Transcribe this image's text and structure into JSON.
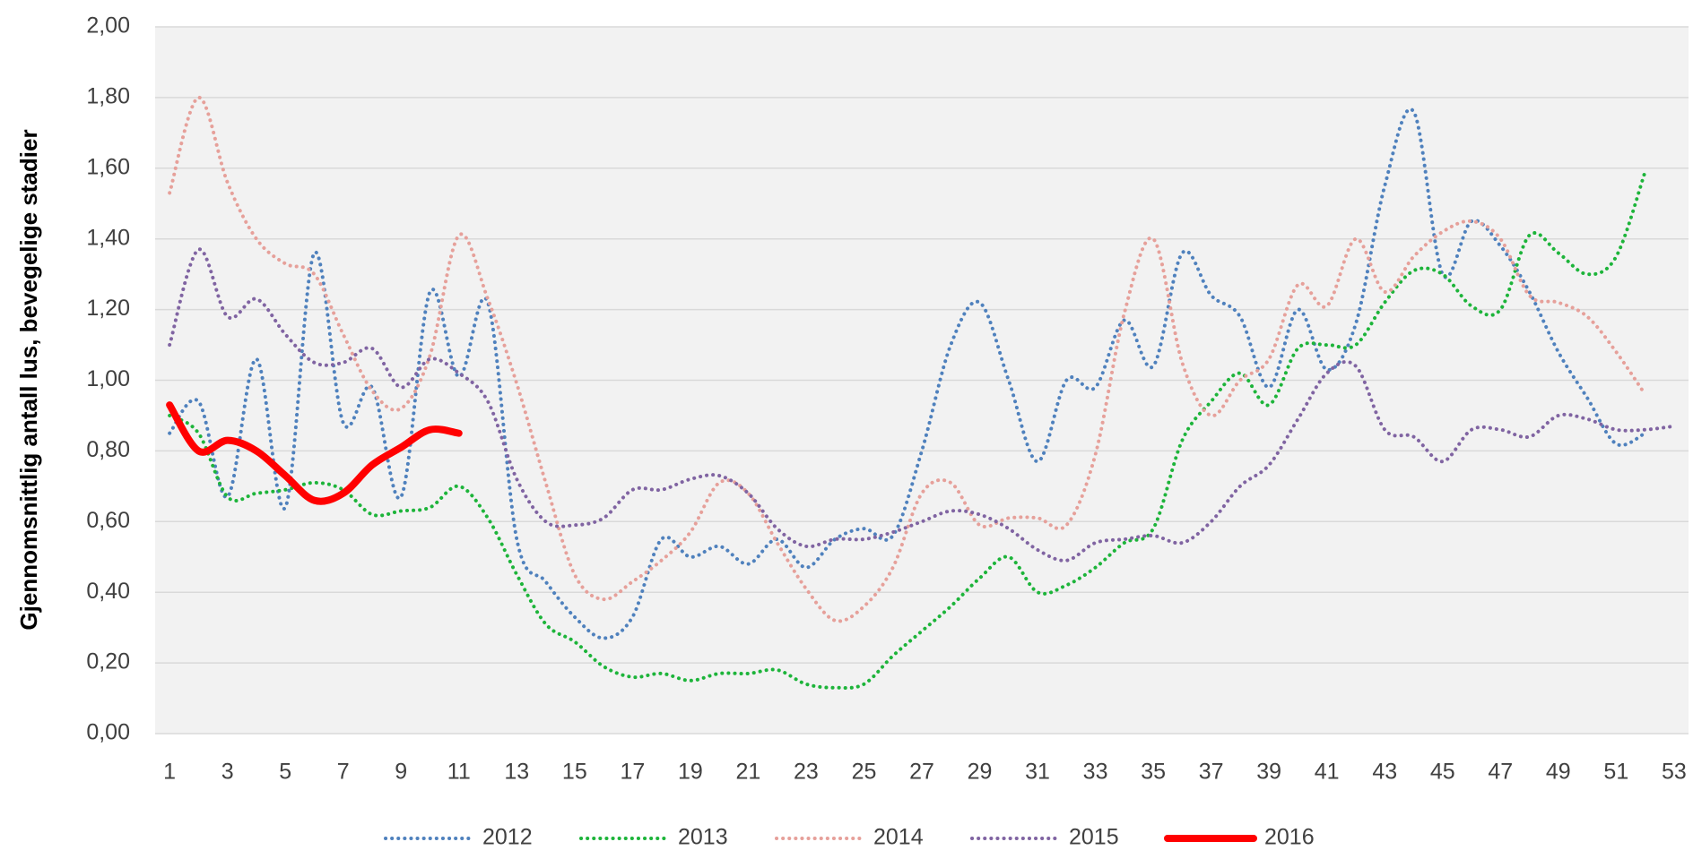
{
  "chart_data": {
    "type": "line",
    "y_label": "Gjennomsnittlig antall lus, bevegelige stadier",
    "categories": [
      1,
      null,
      3,
      null,
      5,
      null,
      7,
      null,
      9,
      null,
      11,
      null,
      13,
      null,
      15,
      null,
      17,
      null,
      19,
      null,
      21,
      null,
      23,
      null,
      25,
      null,
      27,
      null,
      29,
      null,
      31,
      null,
      33,
      null,
      35,
      null,
      37,
      null,
      39,
      null,
      41,
      null,
      43,
      null,
      45,
      null,
      47,
      null,
      49,
      null,
      51,
      null,
      53
    ],
    "ylim": [
      0,
      2
    ],
    "yticks": [
      {
        "value": 0,
        "label": "0,00"
      },
      {
        "value": 0.2,
        "label": "0,20"
      },
      {
        "value": 0.4,
        "label": "0,40"
      },
      {
        "value": 0.6,
        "label": "0,60"
      },
      {
        "value": 0.8,
        "label": "0,80"
      },
      {
        "value": 1,
        "label": "1,00"
      },
      {
        "value": 1.2,
        "label": "1,20"
      },
      {
        "value": 1.4,
        "label": "1,40"
      },
      {
        "value": 1.6,
        "label": "1,60"
      },
      {
        "value": 1.8,
        "label": "1,80"
      },
      {
        "value": 2,
        "label": "2,00"
      }
    ],
    "grid": true,
    "legend": "bottom",
    "series": [
      {
        "name": "2012",
        "color": "#4f81bd",
        "style": "dotted",
        "values": [
          0.85,
          0.94,
          0.67,
          1.06,
          0.64,
          1.36,
          0.88,
          0.98,
          0.67,
          1.25,
          1.01,
          1.22,
          0.55,
          0.43,
          0.33,
          0.27,
          0.33,
          0.55,
          0.5,
          0.53,
          0.48,
          0.55,
          0.47,
          0.55,
          0.58,
          0.56,
          0.8,
          1.1,
          1.22,
          1.0,
          0.77,
          1.0,
          0.98,
          1.17,
          1.04,
          1.36,
          1.24,
          1.18,
          0.98,
          1.2,
          1.03,
          1.16,
          1.55,
          1.76,
          1.3,
          1.45,
          1.38,
          1.25,
          1.08,
          0.95,
          0.82,
          0.85,
          null
        ]
      },
      {
        "name": "2013",
        "color": "#1db43a",
        "style": "dotted",
        "values": [
          0.9,
          0.85,
          0.67,
          0.68,
          0.69,
          0.71,
          0.69,
          0.62,
          0.63,
          0.64,
          0.7,
          0.61,
          0.45,
          0.31,
          0.26,
          0.19,
          0.16,
          0.17,
          0.15,
          0.17,
          0.17,
          0.18,
          0.14,
          0.13,
          0.14,
          0.22,
          0.29,
          0.36,
          0.44,
          0.5,
          0.4,
          0.42,
          0.47,
          0.54,
          0.58,
          0.83,
          0.94,
          1.02,
          0.93,
          1.09,
          1.1,
          1.1,
          1.22,
          1.31,
          1.3,
          1.21,
          1.2,
          1.41,
          1.36,
          1.3,
          1.35,
          1.59,
          null
        ]
      },
      {
        "name": "2014",
        "color": "#e6a09a",
        "style": "dotted",
        "values": [
          1.53,
          1.8,
          1.56,
          1.4,
          1.33,
          1.3,
          1.13,
          0.97,
          0.92,
          1.07,
          1.41,
          1.23,
          0.99,
          0.71,
          0.45,
          0.38,
          0.43,
          0.49,
          0.57,
          0.71,
          0.68,
          0.54,
          0.41,
          0.32,
          0.36,
          0.47,
          0.68,
          0.71,
          0.59,
          0.61,
          0.61,
          0.59,
          0.79,
          1.19,
          1.4,
          1.05,
          0.9,
          1.0,
          1.06,
          1.27,
          1.21,
          1.4,
          1.25,
          1.35,
          1.42,
          1.45,
          1.4,
          1.24,
          1.22,
          1.18,
          1.08,
          0.96,
          null
        ]
      },
      {
        "name": "2015",
        "color": "#8064a2",
        "style": "dotted",
        "values": [
          1.1,
          1.37,
          1.18,
          1.23,
          1.13,
          1.05,
          1.05,
          1.09,
          0.98,
          1.06,
          1.02,
          0.94,
          0.72,
          0.6,
          0.59,
          0.61,
          0.69,
          0.69,
          0.72,
          0.73,
          0.68,
          0.58,
          0.53,
          0.55,
          0.55,
          0.57,
          0.6,
          0.63,
          0.62,
          0.58,
          0.52,
          0.49,
          0.54,
          0.55,
          0.56,
          0.54,
          0.6,
          0.7,
          0.76,
          0.89,
          1.02,
          1.04,
          0.86,
          0.84,
          0.77,
          0.86,
          0.86,
          0.84,
          0.9,
          0.89,
          0.86,
          0.86,
          0.87
        ]
      },
      {
        "name": "2016",
        "color": "#ff0000",
        "style": "solid",
        "values": [
          0.93,
          0.8,
          0.83,
          0.8,
          0.73,
          0.66,
          0.68,
          0.76,
          0.81,
          0.86,
          0.85,
          null,
          null,
          null,
          null,
          null,
          null,
          null,
          null,
          null,
          null,
          null,
          null,
          null,
          null,
          null,
          null,
          null,
          null,
          null,
          null,
          null,
          null,
          null,
          null,
          null,
          null,
          null,
          null,
          null,
          null,
          null,
          null,
          null,
          null,
          null,
          null,
          null,
          null,
          null,
          null,
          null,
          null
        ]
      }
    ]
  }
}
